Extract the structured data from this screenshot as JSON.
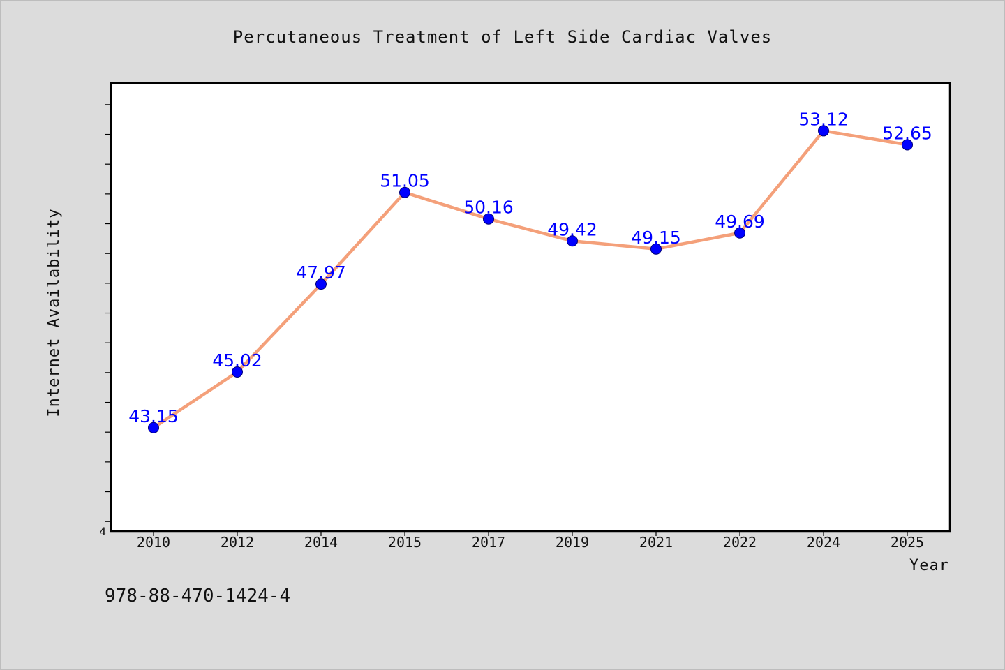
{
  "chart_data": {
    "type": "line",
    "title": "Percutaneous Treatment of Left Side Cardiac Valves",
    "xlabel": "Year",
    "ylabel": "Internet Availability",
    "categories": [
      "2010",
      "2012",
      "2014",
      "2015",
      "2017",
      "2019",
      "2021",
      "2022",
      "2024",
      "2025"
    ],
    "series": [
      {
        "values": [
          43.15,
          45.02,
          47.97,
          51.05,
          50.16,
          49.42,
          49.15,
          49.69,
          53.12,
          52.65
        ],
        "labels": [
          "43.15",
          "45.02",
          "47.97",
          "51.05",
          "50.16",
          "49.42",
          "49.15",
          "49.69",
          "53.12",
          "52.65"
        ],
        "line_color": "#f4a07a",
        "marker_color": "#0000ff"
      }
    ],
    "ylim": [
      39.7,
      54.7
    ],
    "ytick_step": 1,
    "ytick_label": "4",
    "grid": false,
    "legend": "none"
  },
  "footer_text": "978-88-470-1424-4"
}
